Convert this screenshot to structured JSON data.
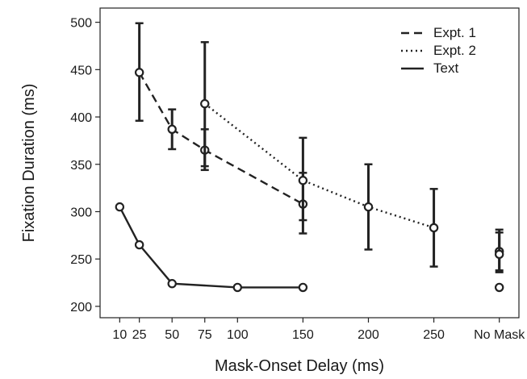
{
  "chart_data": {
    "type": "line",
    "xlabel": "Mask-Onset Delay (ms)",
    "ylabel": "Fixation Duration (ms)",
    "x_tick_labels": [
      "10",
      "25",
      "50",
      "75",
      "100",
      "150",
      "200",
      "250",
      "No Mask"
    ],
    "x_tick_values": [
      10,
      25,
      50,
      75,
      100,
      150,
      200,
      250,
      300
    ],
    "y_ticks": [
      200,
      250,
      300,
      350,
      400,
      450,
      500
    ],
    "ylim": [
      188,
      515
    ],
    "xlim": [
      -5,
      315
    ],
    "grid": false,
    "legend_position": "top-right",
    "series": [
      {
        "name": "Expt. 1",
        "style": "dashed",
        "color": "#222222",
        "points": [
          {
            "x": 25,
            "y": 447,
            "err_low": 396,
            "err_high": 499
          },
          {
            "x": 50,
            "y": 387,
            "err_low": 366,
            "err_high": 408
          },
          {
            "x": 75,
            "y": 365,
            "err_low": 344,
            "err_high": 387
          },
          {
            "x": 150,
            "y": 308,
            "err_low": 277,
            "err_high": 341
          }
        ],
        "no_mask": {
          "y": 258,
          "err_low": 238,
          "err_high": 278
        }
      },
      {
        "name": "Expt. 2",
        "style": "dotted",
        "color": "#222222",
        "points": [
          {
            "x": 75,
            "y": 414,
            "err_low": 348,
            "err_high": 479
          },
          {
            "x": 150,
            "y": 333,
            "err_low": 291,
            "err_high": 378
          },
          {
            "x": 200,
            "y": 305,
            "err_low": 260,
            "err_high": 350
          },
          {
            "x": 250,
            "y": 283,
            "err_low": 242,
            "err_high": 324
          }
        ],
        "no_mask": {
          "y": 255,
          "err_low": 236,
          "err_high": 281
        }
      },
      {
        "name": "Text",
        "style": "solid",
        "color": "#222222",
        "points": [
          {
            "x": 10,
            "y": 305
          },
          {
            "x": 25,
            "y": 265
          },
          {
            "x": 50,
            "y": 224
          },
          {
            "x": 100,
            "y": 220
          },
          {
            "x": 150,
            "y": 220
          }
        ],
        "no_mask": {
          "y": 220
        }
      }
    ]
  }
}
